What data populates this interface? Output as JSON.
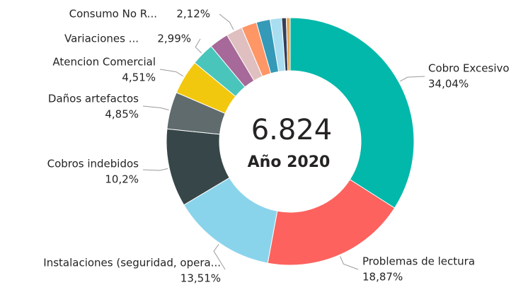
{
  "chart_data": {
    "type": "pie",
    "donut": true,
    "categories": [
      "Cobro Excesivo",
      "Problemas de lectura",
      "Instalaciones (seguridad, opera...",
      "Cobros indebidos",
      "Daños artefactos",
      "Atencion Comercial",
      "Variaciones ...",
      null,
      "Consumo No R...",
      null,
      null,
      null,
      null,
      null
    ],
    "values": [
      34.04,
      18.87,
      13.51,
      10.2,
      4.85,
      4.51,
      2.99,
      2.5,
      2.12,
      2.0,
      1.8,
      1.5,
      0.6,
      0.51
    ],
    "value_labels": [
      "34,04%",
      "18,87%",
      "13,51%",
      "10,2%",
      "4,85%",
      "4,51%",
      "2,99%",
      null,
      "2,12%",
      null,
      null,
      null,
      null,
      null
    ],
    "colors": [
      "#01B8AA",
      "#FD625E",
      "#8AD4EB",
      "#374649",
      "#5F6B6D",
      "#F2C80F",
      "#4AC5BB",
      "#A66999",
      "#DFBFBF",
      "#FE9666",
      "#3599B8",
      "#A9DDF0",
      "#34405A",
      "#E8A857"
    ],
    "annotations": [
      "6.824",
      "Año 2020"
    ]
  }
}
